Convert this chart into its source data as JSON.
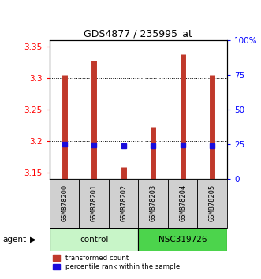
{
  "title": "GDS4877 / 235995_at",
  "samples": [
    "GSM878200",
    "GSM878201",
    "GSM878202",
    "GSM878203",
    "GSM878204",
    "GSM878205"
  ],
  "red_values": [
    3.305,
    3.328,
    3.158,
    3.222,
    3.338,
    3.305
  ],
  "blue_values": [
    3.195,
    3.193,
    3.192,
    3.192,
    3.194,
    3.192
  ],
  "ylim_left": [
    3.14,
    3.36
  ],
  "ylim_right": [
    0,
    100
  ],
  "yticks_left": [
    3.15,
    3.2,
    3.25,
    3.3,
    3.35
  ],
  "ytick_labels_left": [
    "3.15",
    "3.2",
    "3.25",
    "3.3",
    "3.35"
  ],
  "yticks_right": [
    0,
    25,
    50,
    75,
    100
  ],
  "ytick_labels_right": [
    "0",
    "25",
    "50",
    "75",
    "100%"
  ],
  "bar_color": "#c0392b",
  "dot_color": "#1a0bdb",
  "control_color": "#c8f5c8",
  "nsc_color": "#4cd44c",
  "sample_box_color": "#d0d0d0",
  "legend_red_label": "transformed count",
  "legend_blue_label": "percentile rank within the sample"
}
